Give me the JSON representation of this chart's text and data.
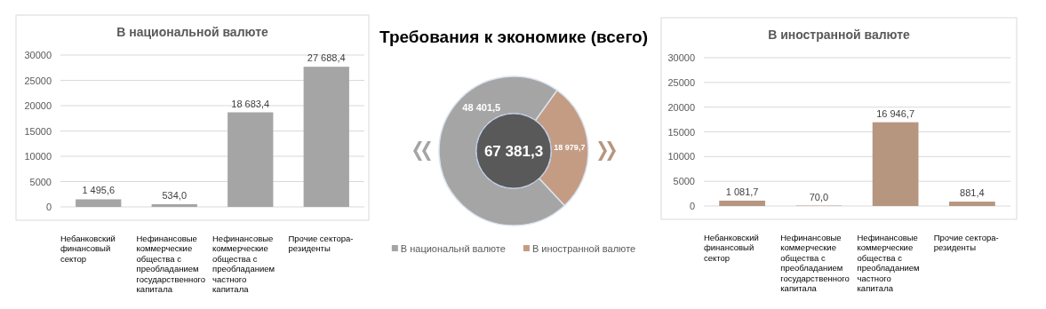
{
  "chart_data": [
    {
      "type": "bar",
      "title": "В национальной валюте",
      "categories": [
        "Небанковский финансовый сектор",
        "Нефинансовые коммерческие общества с преобладанием государственного капитала",
        "Нефинансовые коммерческие общества с преобладанием частного капитала",
        "Прочие сектора-резиденты"
      ],
      "values": [
        1495.6,
        534.0,
        18683.4,
        27688.4
      ],
      "value_labels": [
        "1 495,6",
        "534,0",
        "18 683,4",
        "27 688,4"
      ],
      "color": "#a5a5a5",
      "ylim": [
        0,
        30000
      ],
      "yticks": [
        0,
        5000,
        10000,
        15000,
        20000,
        25000,
        30000
      ],
      "grid": "y"
    },
    {
      "type": "donut",
      "title": "Требования к экономике (всего)",
      "categories": [
        "В национальнй валюте",
        "В иностранной валюте"
      ],
      "values": [
        48401.5,
        18979.7
      ],
      "value_labels": [
        "48 401,5",
        "18 979,7"
      ],
      "colors": [
        "#a5a5a5",
        "#c49c84"
      ],
      "annotations": [
        "67 381,3"
      ],
      "legend": "bottom"
    },
    {
      "type": "bar",
      "title": "В иностранной валюте",
      "categories": [
        "Небанковский финансовый сектор",
        "Нефинансовые коммерческие общества с преобладанием государственного капитала",
        "Нефинансовые коммерческие общества с преобладанием частного капитала",
        "Прочие сектора-резиденты"
      ],
      "values": [
        1081.7,
        70.0,
        16946.7,
        881.4
      ],
      "value_labels": [
        "1 081,7",
        "70,0",
        "16 946,7",
        "881,4"
      ],
      "color": "#b79680",
      "ylim": [
        0,
        30000
      ],
      "yticks": [
        0,
        5000,
        10000,
        15000,
        20000,
        25000,
        30000
      ],
      "grid": "y"
    }
  ]
}
